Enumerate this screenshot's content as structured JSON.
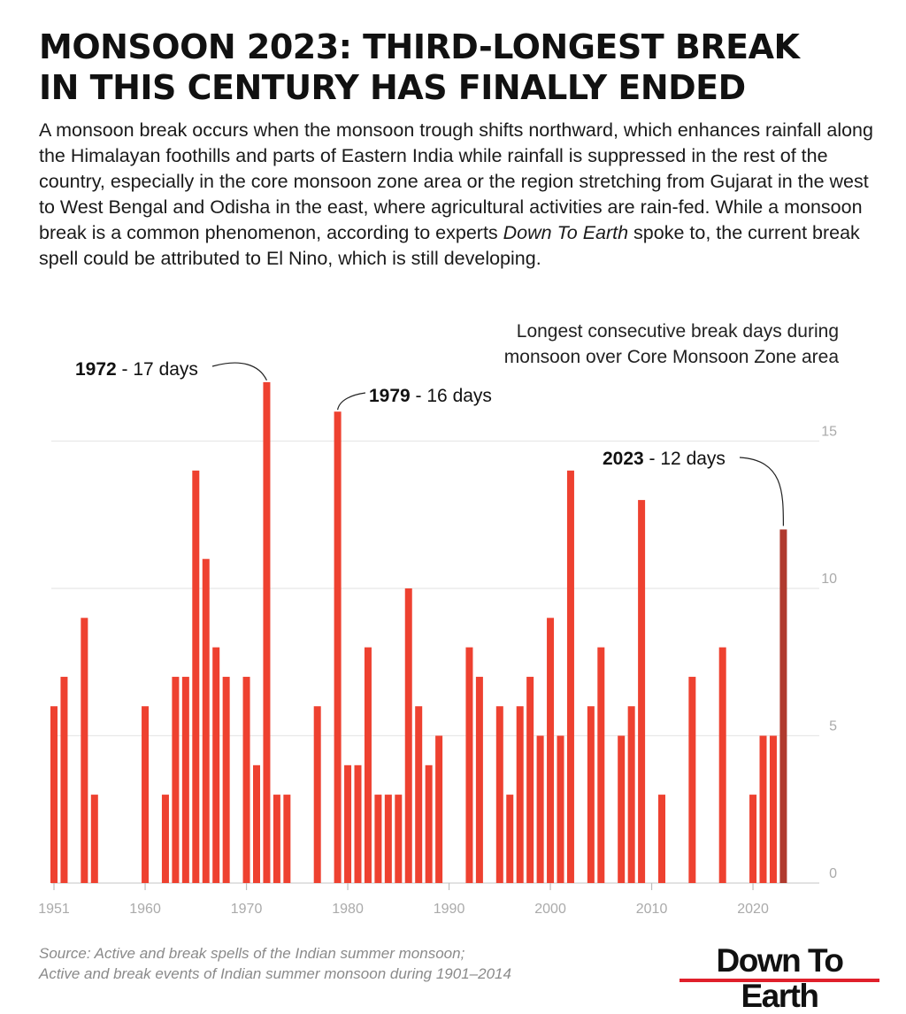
{
  "headline": {
    "line1": "MONSOON 2023: THIRD-LONGEST BREAK",
    "line2": "IN THIS CENTURY HAS FINALLY ENDED"
  },
  "intro": {
    "before": "A monsoon break occurs when the monsoon trough shifts northward, which enhances rainfall along the Himalayan foothills and parts of Eastern India while rainfall is suppressed in the rest of the country, especially in the core monsoon zone area or the region stretching from Gujarat in the west to West Bengal and Odisha in the east,  where agricultural activities are rain-fed. While a monsoon break is a common phenomenon, according to experts ",
    "publication": "Down To Earth",
    "after": " spoke to, the current break spell could be attributed to El Nino, which is still developing."
  },
  "chart_data": {
    "type": "bar",
    "title": "Longest consecutive break days during monsoon over Core Monsoon Zone area",
    "subtitle_lines": [
      "Longest consecutive break days during",
      "monsoon over Core Monsoon Zone area"
    ],
    "x": [
      1951,
      1952,
      1954,
      1955,
      1960,
      1962,
      1963,
      1964,
      1965,
      1966,
      1967,
      1968,
      1970,
      1971,
      1972,
      1973,
      1974,
      1977,
      1979,
      1980,
      1981,
      1982,
      1983,
      1984,
      1985,
      1986,
      1987,
      1988,
      1989,
      1992,
      1993,
      1995,
      1996,
      1997,
      1998,
      1999,
      2000,
      2001,
      2002,
      2004,
      2005,
      2007,
      2008,
      2009,
      2011,
      2014,
      2017,
      2020,
      2021,
      2022,
      2023
    ],
    "values": [
      6,
      7,
      9,
      3,
      6,
      3,
      7,
      7,
      14,
      11,
      8,
      7,
      7,
      4,
      17,
      3,
      3,
      6,
      16,
      4,
      4,
      8,
      3,
      3,
      3,
      10,
      6,
      4,
      5,
      8,
      7,
      6,
      3,
      6,
      7,
      5,
      9,
      5,
      14,
      6,
      8,
      5,
      6,
      13,
      3,
      7,
      8,
      3,
      5,
      5,
      12
    ],
    "highlight": [
      2023
    ],
    "xlim": [
      1951,
      2027
    ],
    "ylim": [
      0,
      17
    ],
    "xticks": [
      "1951",
      "1960",
      "1970",
      "1980",
      "1990",
      "2000",
      "2010",
      "2020"
    ],
    "yticks": [
      "0",
      "5",
      "10",
      "15"
    ],
    "grid": true,
    "y_axis_side": "right",
    "colors": {
      "bar": "#ee4130",
      "highlight": "#b03a2e",
      "grid": "#e8e8e8",
      "tick": "#aaaaaa"
    },
    "annotations": [
      {
        "year": 1972,
        "label_year": "1972",
        "label_rest": " - 17 days"
      },
      {
        "year": 1979,
        "label_year": "1979",
        "label_rest": " - 16 days"
      },
      {
        "year": 2023,
        "label_year": "2023",
        "label_rest": " - 12 days"
      }
    ]
  },
  "source": {
    "line1": "Source:  Active and break spells of the Indian summer monsoon;",
    "line2": "Active and break events of Indian summer monsoon during 1901–2014"
  },
  "logo": {
    "text": "Down To Earth",
    "accent": "#e0202b"
  }
}
